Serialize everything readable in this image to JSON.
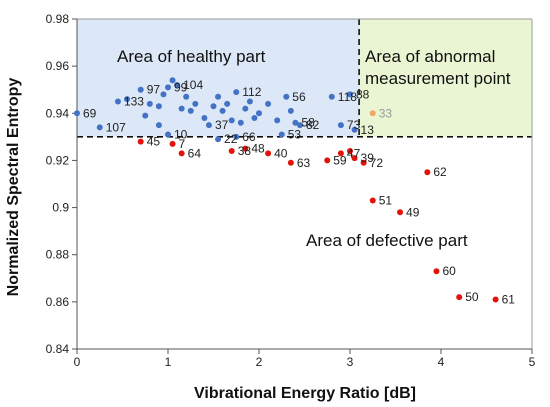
{
  "chart_data": {
    "type": "scatter",
    "xlabel": "Vibrational Energy Ratio [dB]",
    "ylabel": "Normalized Spectral Entropy",
    "xlim": [
      0,
      5
    ],
    "ylim": [
      0.84,
      0.98
    ],
    "x_ticks": [
      "0",
      "1",
      "2",
      "3",
      "4",
      "5"
    ],
    "y_ticks": [
      "0.84",
      "0.86",
      "0.88",
      "0.9",
      "0.92",
      "0.94",
      "0.96",
      "0.98"
    ],
    "grid": "none",
    "colors": {
      "healthy": "#4472C4",
      "defective": "#E3120B",
      "abnormal": "#F0A868",
      "healthy_area": "#DCE8F7",
      "abnormal_area": "#EAF5D3"
    },
    "thresholds": {
      "x": 3.1,
      "y": 0.93
    },
    "regions": [
      {
        "name": "healthy",
        "label": "Area of healthy part"
      },
      {
        "name": "abnormal",
        "label_lines": [
          "Area of abnormal",
          "measurement point"
        ]
      },
      {
        "name": "defective",
        "label": "Area of defective part"
      }
    ],
    "series": [
      {
        "group": "healthy",
        "points": [
          {
            "x": 0.0,
            "y": 0.94,
            "label": "69"
          },
          {
            "x": 0.25,
            "y": 0.934,
            "label": "107"
          },
          {
            "x": 0.45,
            "y": 0.945,
            "label": "133"
          },
          {
            "x": 0.55,
            "y": 0.946,
            "label": ""
          },
          {
            "x": 0.7,
            "y": 0.95,
            "label": "97"
          },
          {
            "x": 0.8,
            "y": 0.944,
            "label": ""
          },
          {
            "x": 0.9,
            "y": 0.943,
            "label": ""
          },
          {
            "x": 0.95,
            "y": 0.948,
            "label": ""
          },
          {
            "x": 1.0,
            "y": 0.951,
            "label": "99"
          },
          {
            "x": 1.05,
            "y": 0.954,
            "label": ""
          },
          {
            "x": 1.1,
            "y": 0.952,
            "label": "104"
          },
          {
            "x": 1.15,
            "y": 0.942,
            "label": ""
          },
          {
            "x": 1.2,
            "y": 0.947,
            "label": ""
          },
          {
            "x": 1.25,
            "y": 0.941,
            "label": ""
          },
          {
            "x": 1.3,
            "y": 0.944,
            "label": ""
          },
          {
            "x": 1.4,
            "y": 0.938,
            "label": ""
          },
          {
            "x": 0.9,
            "y": 0.935,
            "label": ""
          },
          {
            "x": 0.75,
            "y": 0.939,
            "label": ""
          },
          {
            "x": 1.0,
            "y": 0.931,
            "label": "10"
          },
          {
            "x": 1.45,
            "y": 0.935,
            "label": "37"
          },
          {
            "x": 1.5,
            "y": 0.943,
            "label": ""
          },
          {
            "x": 1.55,
            "y": 0.947,
            "label": ""
          },
          {
            "x": 1.6,
            "y": 0.941,
            "label": ""
          },
          {
            "x": 1.65,
            "y": 0.944,
            "label": ""
          },
          {
            "x": 1.7,
            "y": 0.937,
            "label": ""
          },
          {
            "x": 1.75,
            "y": 0.949,
            "label": "112"
          },
          {
            "x": 1.8,
            "y": 0.936,
            "label": ""
          },
          {
            "x": 1.85,
            "y": 0.942,
            "label": ""
          },
          {
            "x": 1.9,
            "y": 0.945,
            "label": ""
          },
          {
            "x": 1.95,
            "y": 0.938,
            "label": ""
          },
          {
            "x": 1.55,
            "y": 0.929,
            "label": "22"
          },
          {
            "x": 1.75,
            "y": 0.93,
            "label": "66"
          },
          {
            "x": 2.0,
            "y": 0.94,
            "label": ""
          },
          {
            "x": 2.1,
            "y": 0.944,
            "label": ""
          },
          {
            "x": 2.2,
            "y": 0.937,
            "label": ""
          },
          {
            "x": 2.25,
            "y": 0.931,
            "label": "53"
          },
          {
            "x": 2.3,
            "y": 0.947,
            "label": "56"
          },
          {
            "x": 2.35,
            "y": 0.941,
            "label": ""
          },
          {
            "x": 2.4,
            "y": 0.936,
            "label": "58"
          },
          {
            "x": 2.45,
            "y": 0.935,
            "label": "82"
          },
          {
            "x": 2.8,
            "y": 0.947,
            "label": "118"
          },
          {
            "x": 3.0,
            "y": 0.948,
            "label": "88"
          },
          {
            "x": 2.9,
            "y": 0.935,
            "label": "73"
          },
          {
            "x": 3.05,
            "y": 0.933,
            "label": "13"
          }
        ]
      },
      {
        "group": "abnormal",
        "points": [
          {
            "x": 3.25,
            "y": 0.94,
            "label": "33"
          }
        ]
      },
      {
        "group": "defective",
        "points": [
          {
            "x": 0.7,
            "y": 0.928,
            "label": "45"
          },
          {
            "x": 1.05,
            "y": 0.927,
            "label": "7"
          },
          {
            "x": 1.15,
            "y": 0.923,
            "label": "64"
          },
          {
            "x": 1.7,
            "y": 0.924,
            "label": "38"
          },
          {
            "x": 1.85,
            "y": 0.925,
            "label": "48"
          },
          {
            "x": 2.1,
            "y": 0.923,
            "label": "40"
          },
          {
            "x": 2.35,
            "y": 0.919,
            "label": "63"
          },
          {
            "x": 2.75,
            "y": 0.92,
            "label": "59"
          },
          {
            "x": 2.9,
            "y": 0.923,
            "label": "47"
          },
          {
            "x": 3.0,
            "y": 0.924,
            "label": ""
          },
          {
            "x": 3.05,
            "y": 0.921,
            "label": "39"
          },
          {
            "x": 3.15,
            "y": 0.919,
            "label": "72"
          },
          {
            "x": 3.85,
            "y": 0.915,
            "label": "62"
          },
          {
            "x": 3.25,
            "y": 0.903,
            "label": "51"
          },
          {
            "x": 3.55,
            "y": 0.898,
            "label": "49"
          },
          {
            "x": 3.95,
            "y": 0.873,
            "label": "60"
          },
          {
            "x": 4.2,
            "y": 0.862,
            "label": "50"
          },
          {
            "x": 4.6,
            "y": 0.861,
            "label": "61"
          }
        ]
      }
    ]
  }
}
